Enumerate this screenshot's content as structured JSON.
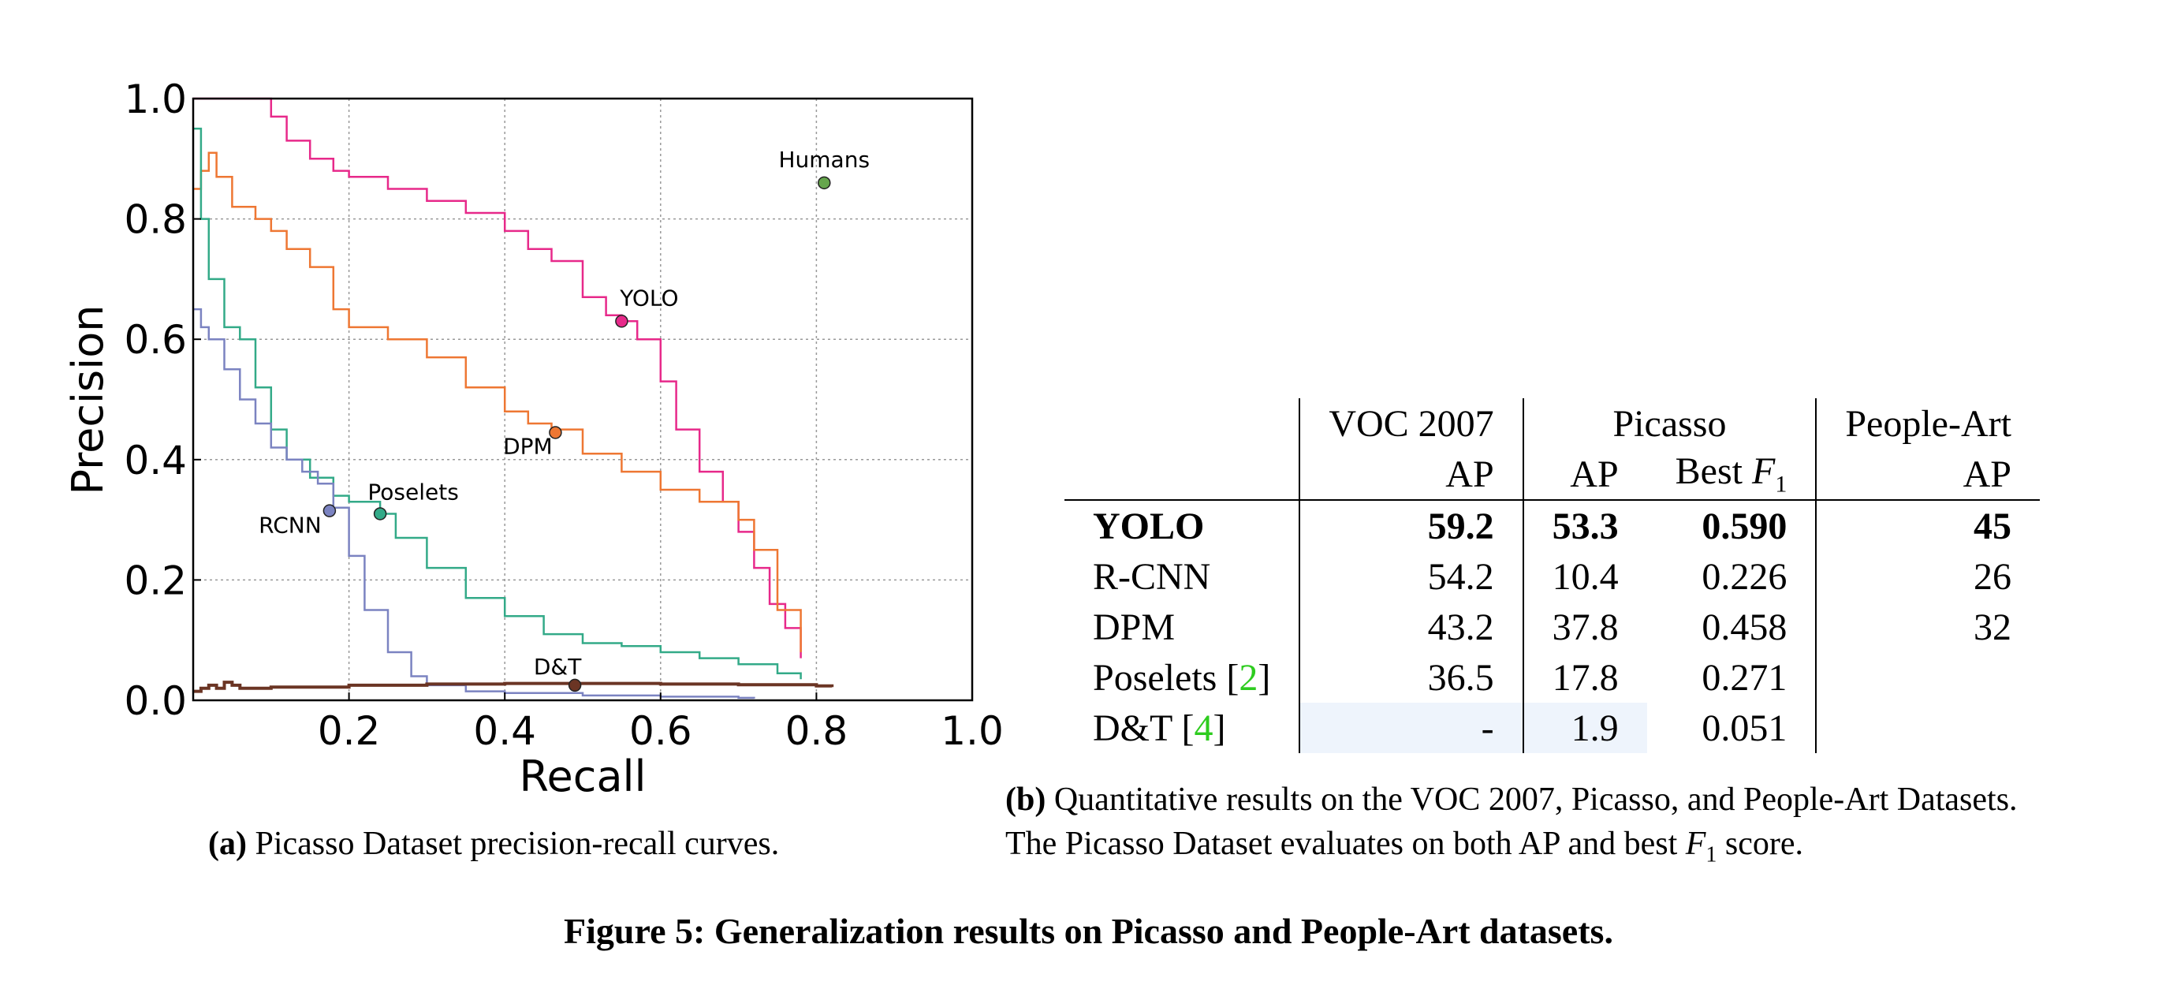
{
  "chart_data": {
    "type": "line",
    "xlabel": "Recall",
    "ylabel": "Precision",
    "xlim": [
      0.0,
      1.0
    ],
    "ylim": [
      0.0,
      1.0
    ],
    "xticks": [
      "0.2",
      "0.4",
      "0.6",
      "0.8",
      "1.0"
    ],
    "yticks": [
      "0.0",
      "0.2",
      "0.4",
      "0.6",
      "0.8",
      "1.0"
    ],
    "grid": true,
    "colors": {
      "YOLO": "#e7298a",
      "DPM": "#ee7733",
      "Poselets": "#33aa88",
      "RCNN": "#7b83c1",
      "D&T": "#6b3524",
      "Humans": "#66a64d"
    },
    "series": [
      {
        "name": "YOLO",
        "x": [
          0.0,
          0.05,
          0.06,
          0.09,
          0.1,
          0.12,
          0.15,
          0.18,
          0.2,
          0.25,
          0.3,
          0.35,
          0.4,
          0.43,
          0.46,
          0.5,
          0.53,
          0.55,
          0.57,
          0.6,
          0.62,
          0.65,
          0.68,
          0.7,
          0.72,
          0.74,
          0.76,
          0.78
        ],
        "y": [
          1.0,
          1.0,
          1.0,
          1.0,
          0.97,
          0.93,
          0.9,
          0.88,
          0.87,
          0.85,
          0.83,
          0.81,
          0.78,
          0.75,
          0.73,
          0.67,
          0.64,
          0.63,
          0.6,
          0.53,
          0.45,
          0.38,
          0.33,
          0.28,
          0.22,
          0.16,
          0.12,
          0.07
        ]
      },
      {
        "name": "DPM",
        "x": [
          0.0,
          0.01,
          0.02,
          0.03,
          0.05,
          0.08,
          0.1,
          0.12,
          0.15,
          0.18,
          0.2,
          0.25,
          0.3,
          0.35,
          0.4,
          0.43,
          0.46,
          0.5,
          0.55,
          0.6,
          0.65,
          0.7,
          0.72,
          0.75,
          0.78
        ],
        "y": [
          0.85,
          0.88,
          0.91,
          0.87,
          0.82,
          0.8,
          0.78,
          0.75,
          0.72,
          0.65,
          0.62,
          0.6,
          0.57,
          0.52,
          0.48,
          0.46,
          0.45,
          0.41,
          0.38,
          0.35,
          0.33,
          0.3,
          0.25,
          0.15,
          0.08
        ]
      },
      {
        "name": "Poselets",
        "x": [
          0.0,
          0.01,
          0.02,
          0.04,
          0.06,
          0.08,
          0.1,
          0.12,
          0.15,
          0.18,
          0.2,
          0.24,
          0.26,
          0.3,
          0.35,
          0.4,
          0.45,
          0.5,
          0.55,
          0.6,
          0.65,
          0.7,
          0.75,
          0.78
        ],
        "y": [
          0.95,
          0.8,
          0.7,
          0.62,
          0.6,
          0.52,
          0.45,
          0.4,
          0.37,
          0.34,
          0.33,
          0.31,
          0.27,
          0.22,
          0.17,
          0.14,
          0.11,
          0.095,
          0.09,
          0.08,
          0.07,
          0.06,
          0.045,
          0.035
        ]
      },
      {
        "name": "RCNN",
        "x": [
          0.0,
          0.01,
          0.02,
          0.04,
          0.06,
          0.08,
          0.1,
          0.12,
          0.14,
          0.16,
          0.18,
          0.2,
          0.22,
          0.25,
          0.28,
          0.3,
          0.35,
          0.4,
          0.5,
          0.6,
          0.7,
          0.72
        ],
        "y": [
          0.65,
          0.62,
          0.6,
          0.55,
          0.5,
          0.46,
          0.42,
          0.4,
          0.38,
          0.36,
          0.32,
          0.24,
          0.15,
          0.08,
          0.04,
          0.025,
          0.015,
          0.012,
          0.008,
          0.006,
          0.004,
          0.003
        ]
      },
      {
        "name": "D&T",
        "x": [
          0.0,
          0.01,
          0.02,
          0.03,
          0.04,
          0.05,
          0.06,
          0.1,
          0.2,
          0.3,
          0.4,
          0.5,
          0.6,
          0.7,
          0.8,
          0.82
        ],
        "y": [
          0.015,
          0.02,
          0.025,
          0.02,
          0.03,
          0.025,
          0.02,
          0.022,
          0.025,
          0.027,
          0.028,
          0.028,
          0.027,
          0.026,
          0.024,
          0.022
        ]
      }
    ],
    "markers": [
      {
        "name": "Humans",
        "label": "Humans",
        "x": 0.81,
        "y": 0.86
      },
      {
        "name": "YOLO",
        "label": "YOLO",
        "x": 0.55,
        "y": 0.63
      },
      {
        "name": "DPM",
        "label": "DPM",
        "x": 0.465,
        "y": 0.445
      },
      {
        "name": "Poselets",
        "label": "Poselets",
        "x": 0.24,
        "y": 0.31
      },
      {
        "name": "RCNN",
        "label": "RCNN",
        "x": 0.175,
        "y": 0.315
      },
      {
        "name": "D&T",
        "label": "D&T",
        "x": 0.49,
        "y": 0.025
      }
    ]
  },
  "caption_a": {
    "label": "(a)",
    "text": "Picasso Dataset precision-recall curves."
  },
  "table": {
    "header1": {
      "voc": "VOC 2007",
      "picasso": "Picasso",
      "people": "People-Art"
    },
    "header2": {
      "voc_ap": "AP",
      "pic_ap": "AP",
      "pic_f1_prefix": "Best ",
      "pic_f1_var": "F",
      "pic_f1_sub": "1",
      "people_ap": "AP"
    },
    "rows": [
      {
        "name": "YOLO",
        "cite": "",
        "voc": "59.2",
        "pic_ap": "53.3",
        "pic_f1": "0.590",
        "people": "45"
      },
      {
        "name": "R-CNN",
        "cite": "",
        "voc": "54.2",
        "pic_ap": "10.4",
        "pic_f1": "0.226",
        "people": "26"
      },
      {
        "name": "DPM",
        "cite": "",
        "voc": "43.2",
        "pic_ap": "37.8",
        "pic_f1": "0.458",
        "people": "32"
      },
      {
        "name": "Poselets [",
        "cite": "2",
        "close": "]",
        "voc": "36.5",
        "pic_ap": "17.8",
        "pic_f1": "0.271",
        "people": ""
      },
      {
        "name": "D&T [",
        "cite": "4",
        "close": "]",
        "voc": "-",
        "pic_ap": "1.9",
        "pic_f1": "0.051",
        "people": ""
      }
    ]
  },
  "caption_b": {
    "label": "(b)",
    "line1": "Quantitative results on the VOC 2007, Picasso, and People-Art Datasets.",
    "line2_pre": "The Picasso Dataset evaluates on both AP and best ",
    "line2_var": "F",
    "line2_sub": "1",
    "line2_post": " score."
  },
  "figure": {
    "label": "Figure 5:",
    "text": "Generalization results on Picasso and People-Art datasets."
  }
}
